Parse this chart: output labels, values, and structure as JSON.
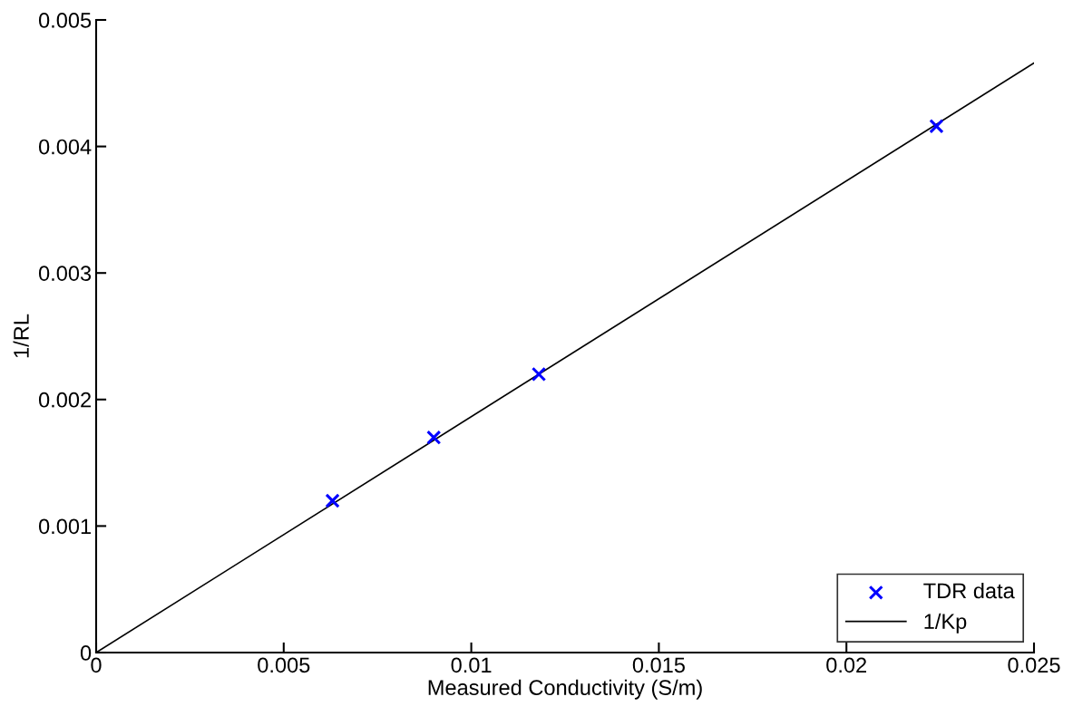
{
  "chart_data": {
    "type": "scatter",
    "xlabel": "Measured Conductivity (S/m)",
    "ylabel": "1/RL",
    "xlim": [
      0,
      0.025
    ],
    "xticks": [
      0,
      0.005,
      0.01,
      0.015,
      0.02,
      0.025
    ],
    "ylim": [
      0,
      0.005
    ],
    "yticks": [
      0,
      0.001,
      0.002,
      0.003,
      0.004,
      0.005
    ],
    "series": [
      {
        "name": "TDR data",
        "color": "#0000ff",
        "marker": "cross",
        "x": [
          0.0063,
          0.009,
          0.0118,
          0.0224
        ],
        "values": [
          0.0012,
          0.0017,
          0.0022,
          0.00416
        ]
      },
      {
        "name": "1/Kp",
        "type": "line",
        "color": "#000000",
        "marker": "none",
        "line_style": "solid",
        "x": [
          0,
          0.025
        ],
        "values": [
          0,
          0.00466
        ]
      }
    ],
    "grid": false,
    "legend": "bottom right"
  }
}
